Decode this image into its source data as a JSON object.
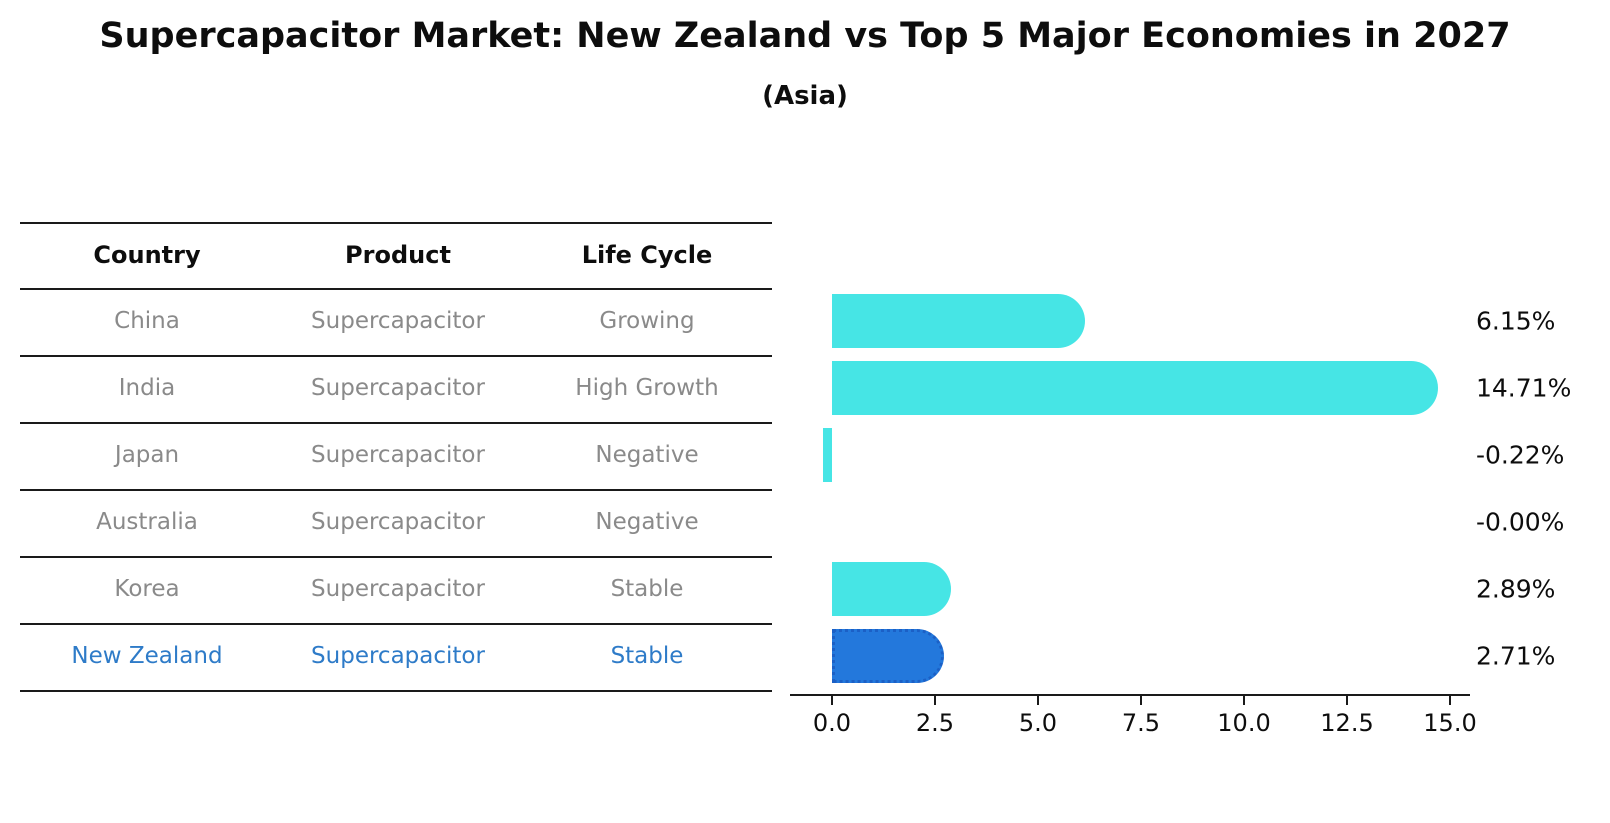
{
  "title": "Supercapacitor Market: New Zealand vs Top 5 Major Economies in 2027",
  "subtitle": "(Asia)",
  "table": {
    "headers": [
      "Country",
      "Product",
      "Life Cycle"
    ],
    "rows": [
      {
        "country": "China",
        "product": "Supercapacitor",
        "life_cycle": "Growing",
        "highlight": false
      },
      {
        "country": "India",
        "product": "Supercapacitor",
        "life_cycle": "High Growth",
        "highlight": false
      },
      {
        "country": "Japan",
        "product": "Supercapacitor",
        "life_cycle": "Negative",
        "highlight": false
      },
      {
        "country": "Australia",
        "product": "Supercapacitor",
        "life_cycle": "Negative",
        "highlight": false
      },
      {
        "country": "Korea",
        "product": "Supercapacitor",
        "life_cycle": "Stable",
        "highlight": false
      },
      {
        "country": "New Zealand",
        "product": "Supercapacitor",
        "life_cycle": "Stable",
        "highlight": true
      }
    ]
  },
  "chart_data": {
    "type": "bar",
    "orientation": "horizontal",
    "categories": [
      "China",
      "India",
      "Japan",
      "Australia",
      "Korea",
      "New Zealand"
    ],
    "values": [
      6.15,
      14.71,
      -0.22,
      -0.0,
      2.89,
      2.71
    ],
    "value_labels": [
      "6.15%",
      "14.71%",
      "-0.22%",
      "-0.00%",
      "2.89%",
      "2.71%"
    ],
    "x_ticks": [
      "0.0",
      "2.5",
      "5.0",
      "7.5",
      "10.0",
      "12.5",
      "15.0"
    ],
    "x_tick_values": [
      0,
      2.5,
      5,
      7.5,
      10,
      12.5,
      15
    ],
    "xlim": [
      0,
      15
    ],
    "grid": false,
    "legend": "none",
    "bar_color": "#46e5e5",
    "highlight_bar_color": "#2378dc",
    "highlight_border_color": "#1b60c6",
    "highlight_index": 5,
    "highlight_text_color": "#2e7bc8"
  }
}
